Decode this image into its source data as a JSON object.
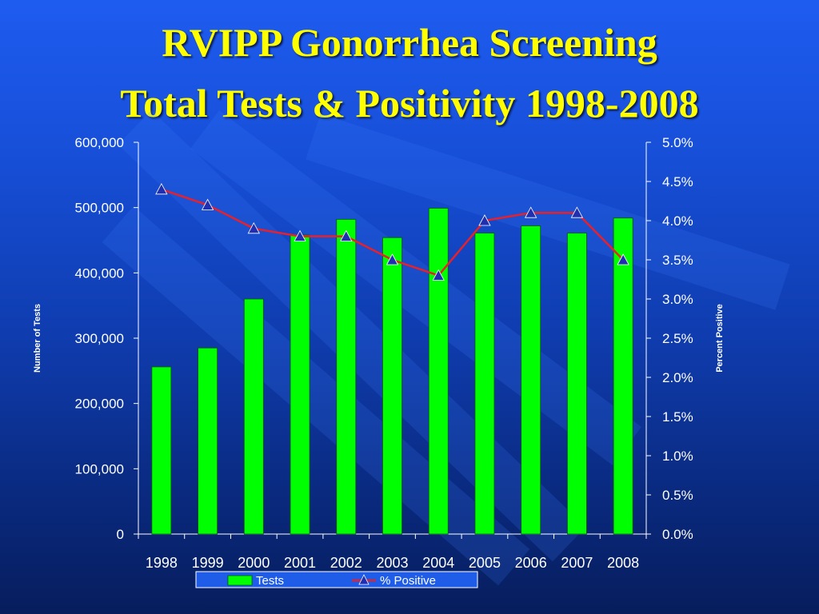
{
  "slide": {
    "title_line1": "RVIPP Gonorrhea Screening",
    "title_line2": "Total Tests & Positivity 1998-2008"
  },
  "colors": {
    "background_top": "#1e5cf0",
    "background_bottom": "#071d5c",
    "title": "#ffff00",
    "bars": "#00ff00",
    "line": "#e8202a",
    "markers": "#1f2fb0",
    "axis_text": "#ffffff"
  },
  "chart_data": {
    "type": "bar",
    "title": "RVIPP Gonorrhea Screening Total Tests & Positivity 1998-2008",
    "categories": [
      "1998",
      "1999",
      "2000",
      "2001",
      "2002",
      "2003",
      "2004",
      "2005",
      "2006",
      "2007",
      "2008"
    ],
    "series": [
      {
        "name": "Tests",
        "type": "bar",
        "axis": "left",
        "values": [
          256000,
          285000,
          360000,
          458000,
          482000,
          454000,
          499000,
          461000,
          472000,
          461000,
          484000
        ]
      },
      {
        "name": "% Positive",
        "type": "line",
        "axis": "right",
        "marker": "triangle",
        "values": [
          4.4,
          4.2,
          3.9,
          3.8,
          3.8,
          3.5,
          3.3,
          4.0,
          4.1,
          4.1,
          3.5
        ]
      }
    ],
    "y_left": {
      "label": "Number of Tests",
      "range": [
        0,
        600000
      ],
      "ticks": [
        "0",
        "100,000",
        "200,000",
        "300,000",
        "400,000",
        "500,000",
        "600,000"
      ]
    },
    "y_right": {
      "label": "Percent Positive",
      "range": [
        0,
        5.0
      ],
      "ticks": [
        "0.0%",
        "0.5%",
        "1.0%",
        "1.5%",
        "2.0%",
        "2.5%",
        "3.0%",
        "3.5%",
        "4.0%",
        "4.5%",
        "5.0%"
      ]
    },
    "legend": {
      "position": "bottom",
      "items": [
        "Tests",
        "% Positive"
      ]
    },
    "grid": false
  }
}
